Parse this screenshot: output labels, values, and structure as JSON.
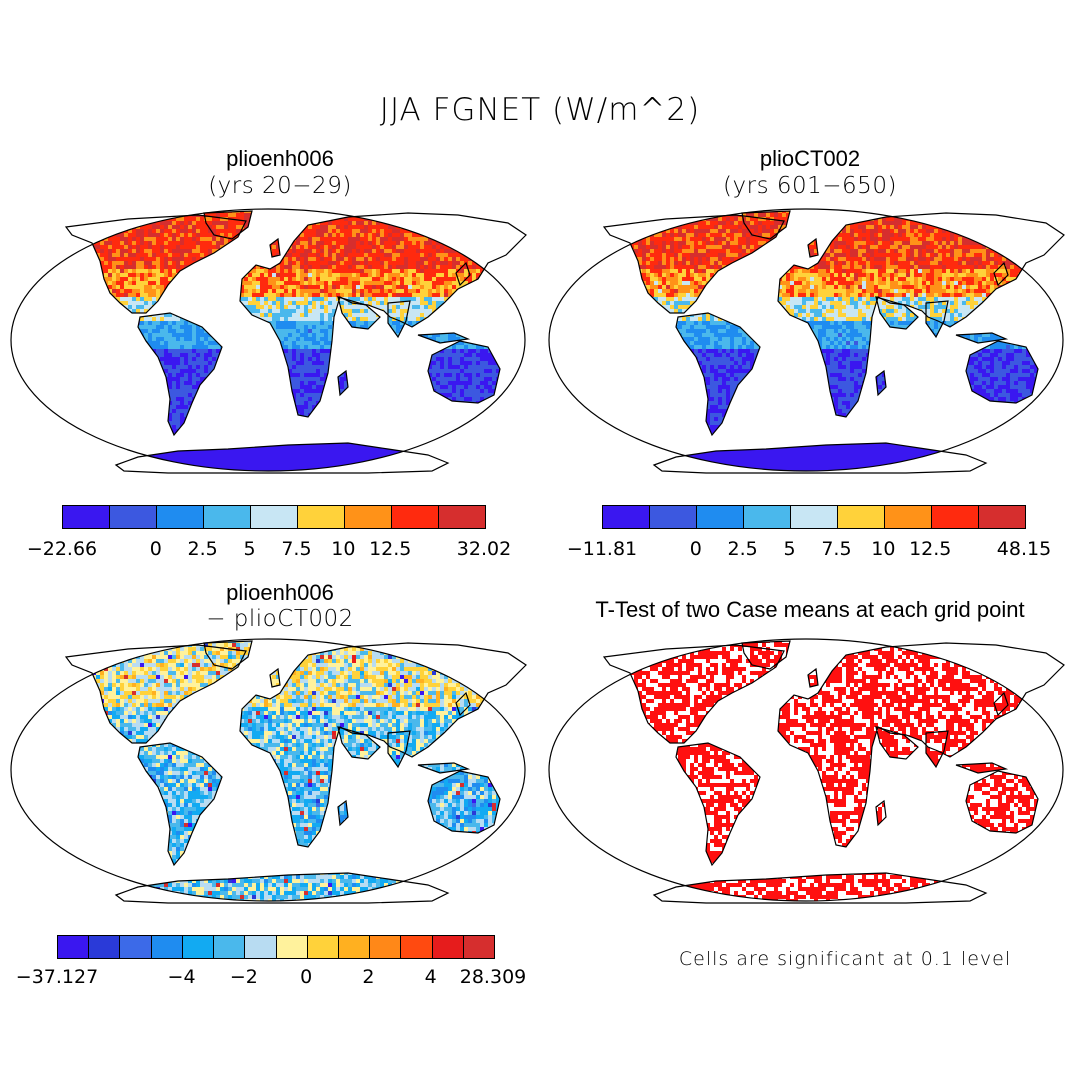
{
  "title": "JJA FGNET (W/m^2)",
  "panels": [
    {
      "id": "tl",
      "title": "plioenh006",
      "subtitle": "(yrs 20-29)",
      "colors": [
        "#3a17f0",
        "#3c58e0",
        "#1f8cf0",
        "#4ab8ec",
        "#c8e6f4",
        "#ffd23a",
        "#ff9218",
        "#ff2a0e",
        "#d62e2e"
      ],
      "tick_labels": [
        "-22.66",
        "0",
        "2.5",
        "5",
        "7.5",
        "10",
        "12.5",
        "32.02"
      ]
    },
    {
      "id": "tr",
      "title": "plioCT002",
      "subtitle": "(yrs 601-650)",
      "colors": [
        "#3a17f0",
        "#3c58e0",
        "#1f8cf0",
        "#4ab8ec",
        "#c8e6f4",
        "#ffd23a",
        "#ff9218",
        "#ff2a0e",
        "#d62e2e"
      ],
      "tick_labels": [
        "-11.81",
        "0",
        "2.5",
        "5",
        "7.5",
        "10",
        "12.5",
        "48.15"
      ]
    },
    {
      "id": "bl",
      "title": "plioenh006",
      "subtitle": "- plioCT002",
      "colors": [
        "#3a17f0",
        "#2a3ad8",
        "#3c6ae8",
        "#1f8cf0",
        "#12aaf2",
        "#4ab8ec",
        "#b8dcf2",
        "#fff29c",
        "#ffd23a",
        "#ffb020",
        "#ff8818",
        "#ff4a10",
        "#e61c1c",
        "#d62e2e"
      ],
      "tick_labels": [
        "-37.127",
        "-4",
        "-2",
        "0",
        "2",
        "4",
        "28.309"
      ]
    },
    {
      "id": "br",
      "title": "T-Test of two Case means at each grid point",
      "note": "Cells are significant at 0.1 level"
    }
  ]
}
